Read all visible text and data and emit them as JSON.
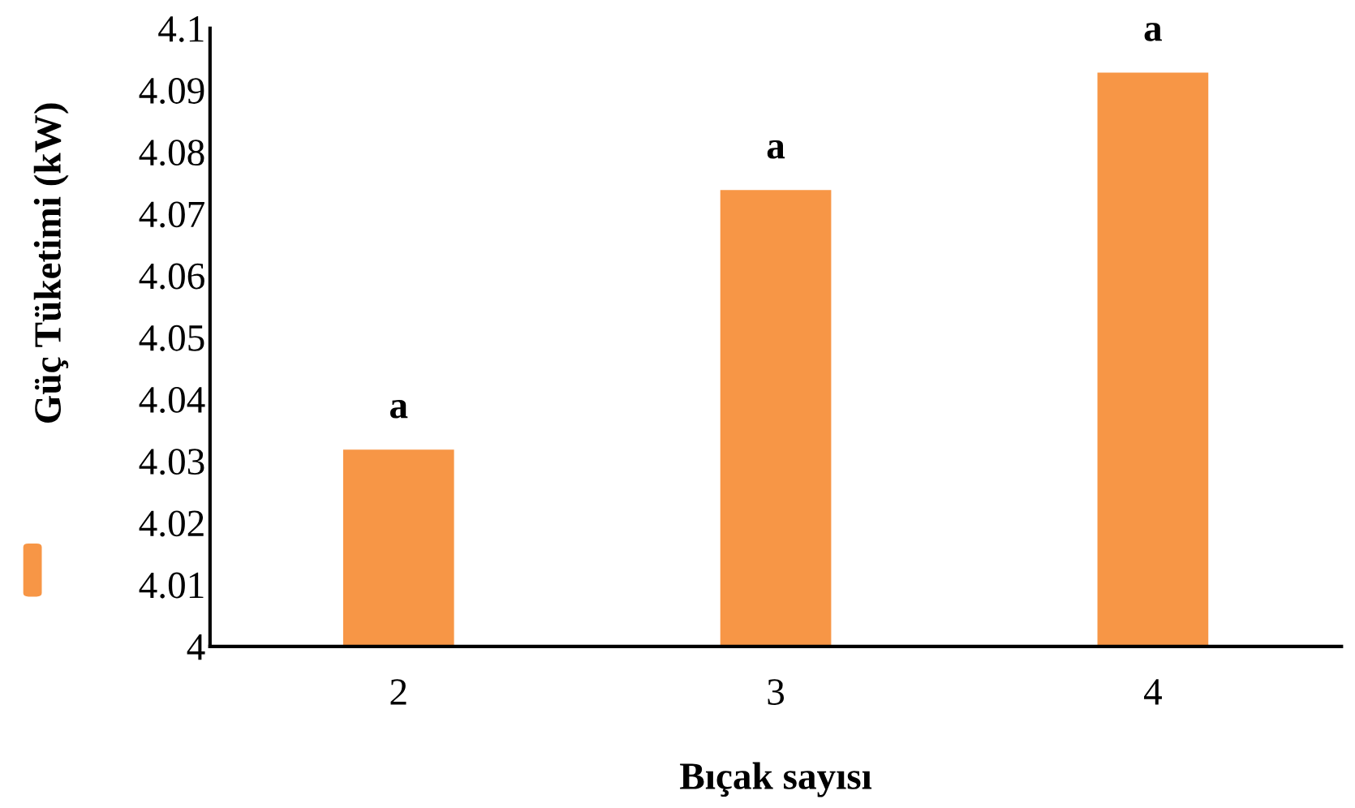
{
  "chart_data": {
    "type": "bar",
    "xlabel": "Bıçak sayısı",
    "ylabel": "Güç Tüketimi (kW)",
    "categories": [
      "2",
      "3",
      "4"
    ],
    "series": [
      {
        "color": "#f79646",
        "values": [
          4.032,
          4.074,
          4.093
        ]
      }
    ],
    "ylim": [
      4,
      4.1
    ],
    "yticks": [
      4,
      4.01,
      4.02,
      4.03,
      4.04,
      4.05,
      4.06,
      4.07,
      4.08,
      4.09,
      4.1
    ],
    "annotations": [
      {
        "text": "a",
        "x": "2",
        "y": 4.032
      },
      {
        "text": "a",
        "x": "3",
        "y": 4.074
      },
      {
        "text": "a",
        "x": "4",
        "y": 4.093
      }
    ]
  }
}
